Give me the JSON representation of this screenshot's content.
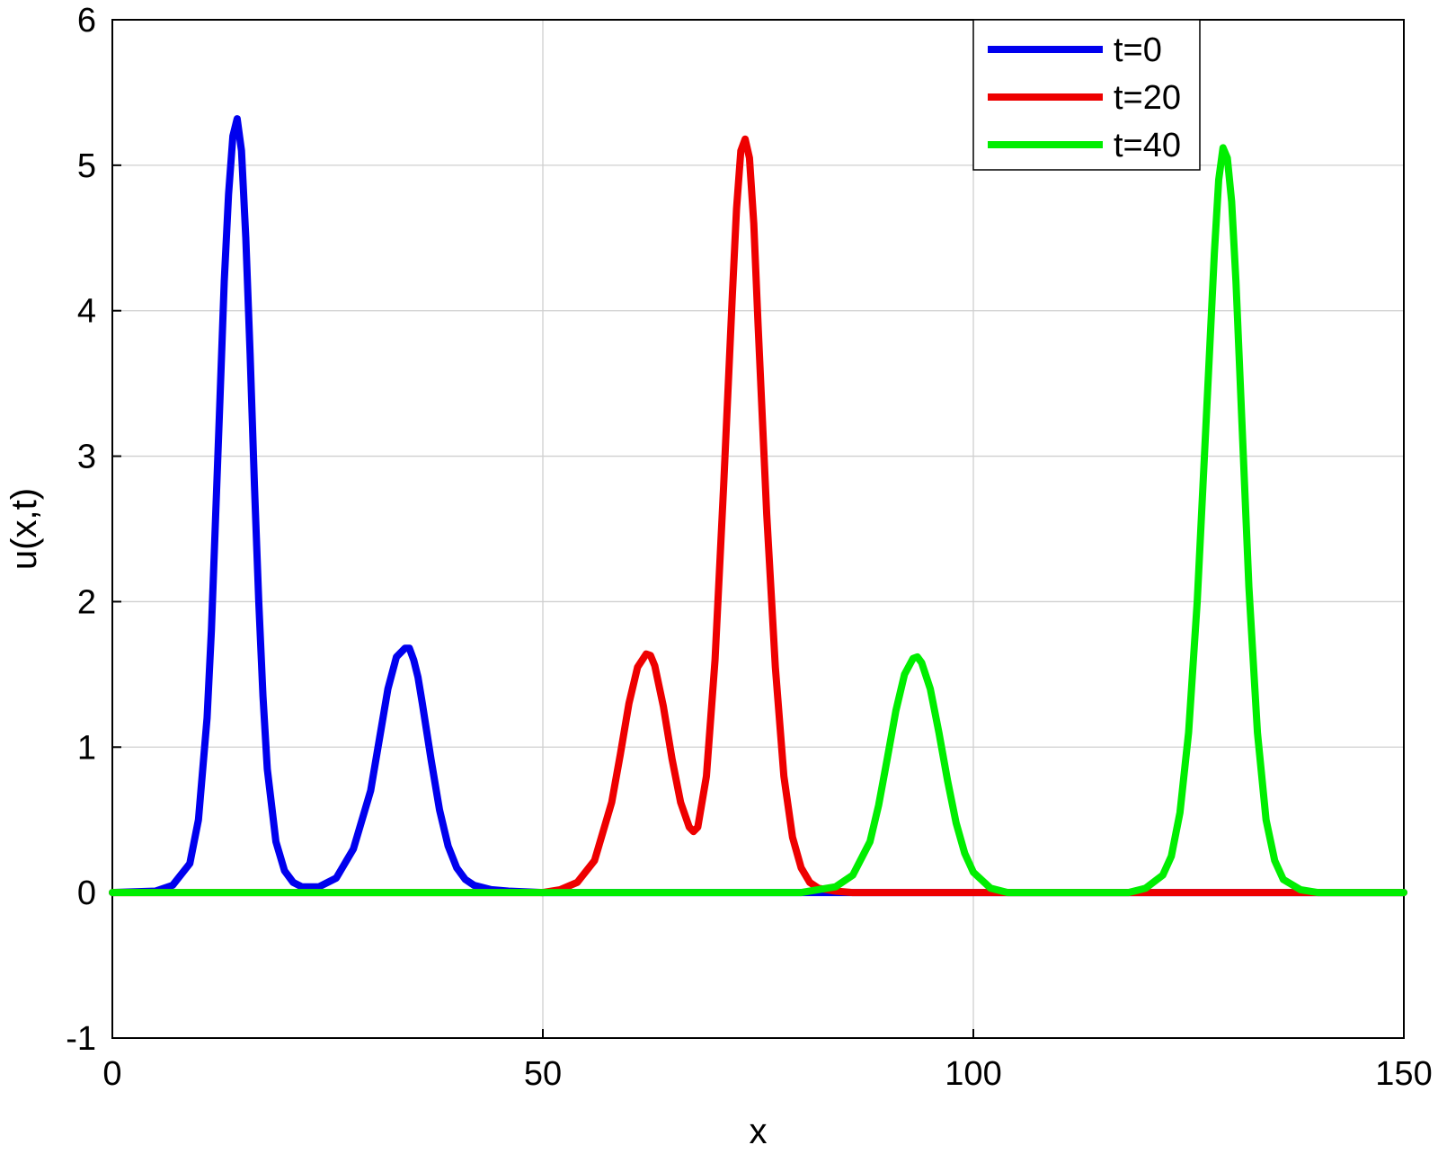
{
  "chart_data": {
    "type": "line",
    "xlabel": "x",
    "ylabel": "u(x,t)",
    "xlim": [
      0,
      150
    ],
    "ylim": [
      -1,
      6
    ],
    "xticks": [
      0,
      50,
      100,
      150
    ],
    "yticks": [
      -1,
      0,
      1,
      2,
      3,
      4,
      5,
      6
    ],
    "grid": true,
    "legend_position": "top-right",
    "series": [
      {
        "name": "t=0",
        "color": "#0000ee",
        "x": [
          0,
          5,
          7,
          9,
          10,
          11,
          11.5,
          12,
          12.5,
          13,
          13.5,
          14,
          14.5,
          15,
          15.5,
          16,
          16.5,
          17,
          17.5,
          18,
          19,
          20,
          21,
          22,
          24,
          26,
          28,
          30,
          31,
          32,
          33,
          34,
          34.5,
          35,
          35.5,
          36,
          37,
          38,
          39,
          40,
          41,
          42,
          44,
          46,
          50,
          60,
          80,
          100,
          150
        ],
        "y": [
          0.0,
          0.01,
          0.05,
          0.2,
          0.5,
          1.2,
          1.8,
          2.6,
          3.4,
          4.2,
          4.8,
          5.2,
          5.32,
          5.1,
          4.5,
          3.7,
          2.8,
          2.0,
          1.35,
          0.85,
          0.35,
          0.15,
          0.07,
          0.04,
          0.04,
          0.1,
          0.3,
          0.7,
          1.05,
          1.4,
          1.62,
          1.68,
          1.68,
          1.6,
          1.48,
          1.3,
          0.92,
          0.57,
          0.32,
          0.17,
          0.09,
          0.05,
          0.02,
          0.01,
          0.0,
          0.0,
          0.0,
          0.0,
          0.0
        ]
      },
      {
        "name": "t=20",
        "color": "#ee0000",
        "x": [
          0,
          20,
          40,
          50,
          52,
          54,
          56,
          58,
          59,
          60,
          61,
          62,
          62.5,
          63,
          64,
          65,
          66,
          67,
          67.5,
          68,
          69,
          70,
          71,
          72,
          72.5,
          73,
          73.5,
          74,
          74.5,
          75,
          76,
          77,
          78,
          79,
          80,
          81,
          82,
          84,
          86,
          90,
          100,
          150
        ],
        "y": [
          0.0,
          0.0,
          0.0,
          0.0,
          0.02,
          0.07,
          0.22,
          0.62,
          0.95,
          1.3,
          1.55,
          1.64,
          1.63,
          1.56,
          1.28,
          0.92,
          0.62,
          0.45,
          0.42,
          0.45,
          0.8,
          1.6,
          2.8,
          4.1,
          4.7,
          5.1,
          5.18,
          5.05,
          4.6,
          3.9,
          2.6,
          1.55,
          0.8,
          0.38,
          0.17,
          0.07,
          0.03,
          0.01,
          0.0,
          0.0,
          0.0,
          0.0
        ]
      },
      {
        "name": "t=40",
        "color": "#00ee00",
        "x": [
          0,
          40,
          70,
          80,
          84,
          86,
          88,
          89,
          90,
          91,
          92,
          93,
          93.5,
          94,
          95,
          96,
          97,
          98,
          99,
          100,
          102,
          104,
          110,
          118,
          120,
          122,
          123,
          124,
          125,
          126,
          127,
          128,
          128.5,
          129,
          129.5,
          130,
          130.5,
          131,
          131.5,
          132,
          133,
          134,
          135,
          136,
          138,
          140,
          145,
          150
        ],
        "y": [
          0.0,
          0.0,
          0.0,
          0.0,
          0.04,
          0.12,
          0.35,
          0.6,
          0.92,
          1.25,
          1.5,
          1.61,
          1.62,
          1.58,
          1.4,
          1.1,
          0.77,
          0.48,
          0.27,
          0.14,
          0.03,
          0.0,
          0.0,
          0.0,
          0.03,
          0.12,
          0.25,
          0.55,
          1.1,
          2.0,
          3.2,
          4.4,
          4.9,
          5.12,
          5.05,
          4.75,
          4.2,
          3.5,
          2.8,
          2.1,
          1.1,
          0.5,
          0.22,
          0.09,
          0.02,
          0.0,
          0.0,
          0.0
        ]
      }
    ]
  }
}
